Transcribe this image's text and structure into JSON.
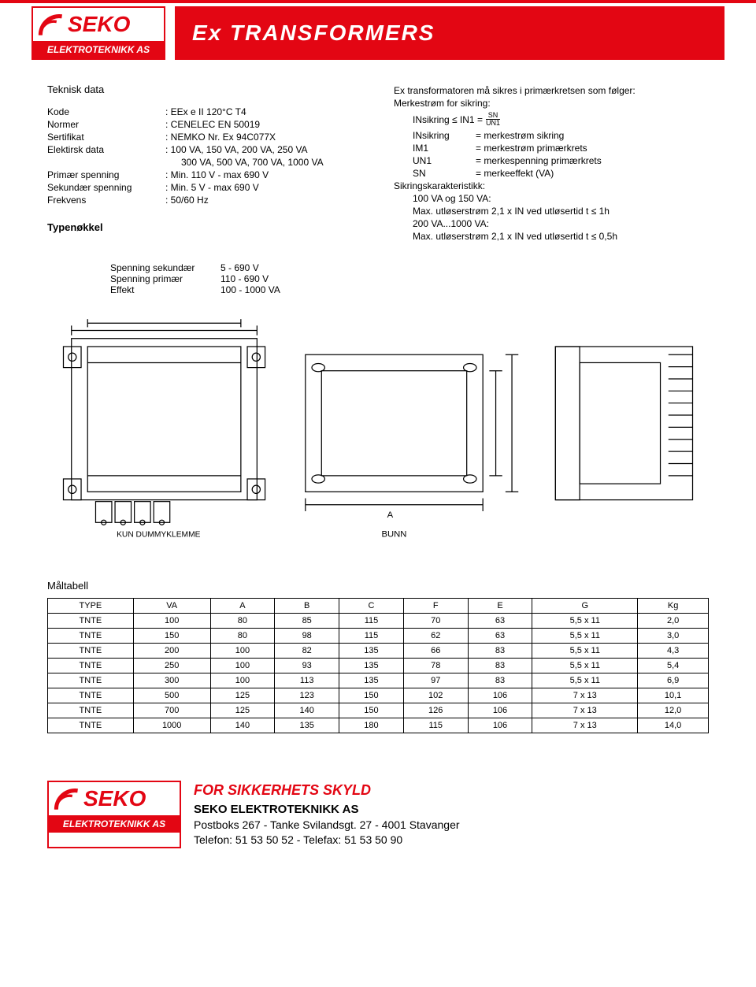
{
  "brand": {
    "name": "SEKO",
    "subtitle": "ELEKTROTEKNIKK AS",
    "accent_color": "#e30613"
  },
  "page_title": "Ex TRANSFORMERS",
  "tech_data": {
    "title": "Teknisk data",
    "rows": [
      {
        "label": "Kode",
        "value": ": EEx e II 120°C T4"
      },
      {
        "label": "Normer",
        "value": ": CENELEC EN 50019"
      },
      {
        "label": "Sertifikat",
        "value": ": NEMKO Nr. Ex 94C077X"
      },
      {
        "label": "Elektirsk data",
        "value": ": 100 VA, 150 VA, 200 VA, 250 VA"
      },
      {
        "label": "",
        "value": "  300 VA, 500 VA, 700 VA, 1000 VA"
      },
      {
        "label": "Primær spenning",
        "value": ": Min. 110 V - max 690 V"
      },
      {
        "label": "Sekundær spenning",
        "value": ": Min. 5 V - max 690 V"
      },
      {
        "label": "Frekvens",
        "value": ": 50/60 Hz"
      }
    ]
  },
  "right": {
    "heading1": "Ex transformatoren må sikres i primærkretsen som følger:",
    "heading2": "Merkestrøm for sikring:",
    "formula_label": "INsikring ≤ IN1 =",
    "frac_num": "SN",
    "frac_den": "UN1",
    "defs": [
      {
        "k": "INsikring",
        "v": "= merkestrøm sikring"
      },
      {
        "k": "IM1",
        "v": "= merkestrøm primærkrets"
      },
      {
        "k": "UN1",
        "v": "= merkespenning primærkrets"
      },
      {
        "k": "SN",
        "v": "= merkeeffekt (VA)"
      }
    ],
    "char_title": "Sikringskarakteristikk:",
    "char_lines": [
      "100 VA og 150 VA:",
      "Max. utløserstrøm 2,1 x IN ved utløsertid t ≤ 1h",
      "200 VA...1000 VA:",
      "Max. utløserstrøm 2,1 x IN ved utløsertid t ≤ 0,5h"
    ]
  },
  "typekey": {
    "title": "Typenøkkel",
    "legend": [
      {
        "label": "Spenning sekundær",
        "value": "5 - 690 V"
      },
      {
        "label": "Spenning primær",
        "value": "110 - 690 V"
      },
      {
        "label": "Effekt",
        "value": "100 - 1000 VA"
      }
    ]
  },
  "diagram_labels": {
    "dummy": "KUN DUMMYKLEMME",
    "bottom": "BUNN"
  },
  "table": {
    "title": "Måltabell",
    "columns": [
      "TYPE",
      "VA",
      "A",
      "B",
      "C",
      "F",
      "E",
      "G",
      "Kg"
    ],
    "rows": [
      [
        "TNTE",
        "100",
        "80",
        "85",
        "115",
        "70",
        "63",
        "5,5 x 11",
        "2,0"
      ],
      [
        "TNTE",
        "150",
        "80",
        "98",
        "115",
        "62",
        "63",
        "5,5 x 11",
        "3,0"
      ],
      [
        "TNTE",
        "200",
        "100",
        "82",
        "135",
        "66",
        "83",
        "5,5 x 11",
        "4,3"
      ],
      [
        "TNTE",
        "250",
        "100",
        "93",
        "135",
        "78",
        "83",
        "5,5 x 11",
        "5,4"
      ],
      [
        "TNTE",
        "300",
        "100",
        "113",
        "135",
        "97",
        "83",
        "5,5 x 11",
        "6,9"
      ],
      [
        "TNTE",
        "500",
        "125",
        "123",
        "150",
        "102",
        "106",
        "7 x 13",
        "10,1"
      ],
      [
        "TNTE",
        "700",
        "125",
        "140",
        "150",
        "126",
        "106",
        "7 x 13",
        "12,0"
      ],
      [
        "TNTE",
        "1000",
        "140",
        "135",
        "180",
        "115",
        "106",
        "7 x 13",
        "14,0"
      ]
    ]
  },
  "footer": {
    "tagline": "FOR SIKKERHETS SKYLD",
    "company": "SEKO ELEKTROTEKNIKK AS",
    "address": "Postboks 267 - Tanke Svilandsgt. 27 - 4001 Stavanger",
    "phone": "Telefon: 51 53 50 52 - Telefax: 51 53 50 90"
  }
}
